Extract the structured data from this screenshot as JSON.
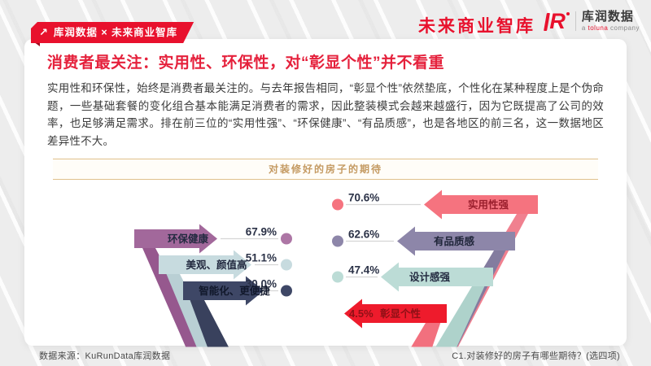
{
  "header": {
    "tab_label": "库润数据 × 未来商业智库",
    "tab_icon": "↗",
    "brand": "未来商业智库",
    "logo_mark": "R",
    "logo_text": "库润数据",
    "logo_tagline_a": "a",
    "logo_tagline_brand": "toluna",
    "logo_tagline_company": "company"
  },
  "content": {
    "title": "消费者最关注：实用性、环保性，对“彰显个性”并不看重",
    "paragraph": "实用性和环保性，始终是消费者最关注的。与去年报告相同，“彰显个性”依然垫底，个性化在某种程度上是个伪命题，一些基础套餐的变化组合基本能满足消费者的需求，因此整装模式会越来越盛行，因为它既提高了公司的效率，也足够满足需求。排在前三位的“实用性强”、“环保健康”、“有品质感”，也是各地区的前三名，这一数据地区差异性不大。",
    "chart_band_title": "对装修好的房子的期待"
  },
  "chart_data": {
    "type": "bar",
    "title": "对装修好的房子的期待",
    "unit": "%",
    "legend_position": "none",
    "style": "mirrored folded-ribbon arrows with leader lines and dots",
    "series": [
      {
        "name": "环保健康",
        "value": 67.9,
        "label": "67.9%",
        "side": "left",
        "color": "#a2689b",
        "tail": "#96588e",
        "fold": "#7c4276",
        "dot": "#ad76a5",
        "label_color": "#232a40",
        "pct_color": "#2b3247"
      },
      {
        "name": "美观、颜值高",
        "value": 51.1,
        "label": "51.1%",
        "side": "left",
        "color": "#c7dbdf",
        "tail": "#b9cfd4",
        "fold": "#9db3bb",
        "dot": "#c7dbdf",
        "label_color": "#232a40",
        "pct_color": "#2b3247"
      },
      {
        "name": "智能化、更便捷",
        "value": 30.0,
        "label": "30.0%",
        "side": "left",
        "color": "#3e4766",
        "tail": "#39415d",
        "fold": "#2b324a",
        "dot": "#3e4766",
        "label_color": "#11182b",
        "pct_color": "#2b3247"
      },
      {
        "name": "实用性强",
        "value": 70.6,
        "label": "70.6%",
        "side": "right",
        "color": "#f5737f",
        "tail": "#f0808f",
        "fold": "#e2596d",
        "dot": "#f5737f",
        "label_color": "#9b1f2d",
        "pct_color": "#2b3247"
      },
      {
        "name": "有品质感",
        "value": 62.6,
        "label": "62.6%",
        "side": "right",
        "color": "#8d86a9",
        "tail": "#837c9f",
        "fold": "#6d6589",
        "dot": "#8d86a9",
        "label_color": "#20263a",
        "pct_color": "#2b3247"
      },
      {
        "name": "设计感强",
        "value": 47.4,
        "label": "47.4%",
        "side": "right",
        "color": "#bcdcd6",
        "tail": "#aed2cb",
        "fold": "#93bab2",
        "dot": "#bcdcd6",
        "label_color": "#232a40",
        "pct_color": "#2b3247"
      },
      {
        "name": "彰显个性",
        "value": 4.5,
        "label": "4.5%",
        "side": "right",
        "color": "#ee1b2c",
        "tail": "#f2707e",
        "fold": "#c8121f",
        "dot": null,
        "label_color": "#8f1016",
        "pct_color": "#8f1016"
      }
    ]
  },
  "footer": {
    "source": "数据来源：KuRunData库润数据",
    "note": "C1.对装修好的房子有哪些期待？(选四项)"
  },
  "colors": {
    "accent_red": "#e8112d",
    "title_red": "#e5213c",
    "band_gold": "#c49a62",
    "band_border": "#e0c18b"
  }
}
